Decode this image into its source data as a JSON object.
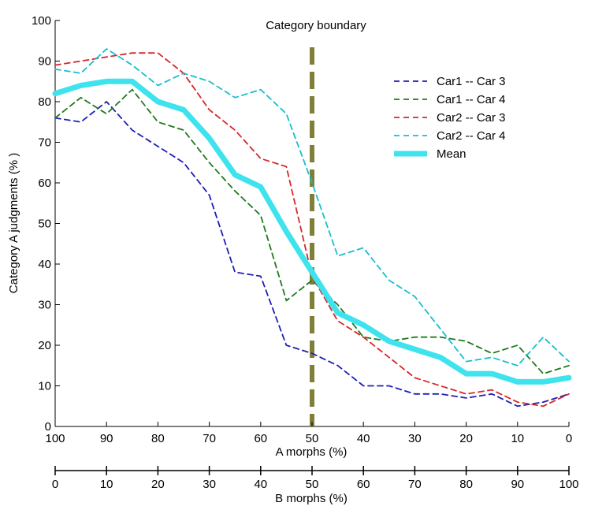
{
  "chart_data": {
    "type": "line",
    "ylabel": "Category A judgments (% )",
    "ylim": [
      0,
      100
    ],
    "yticks": [
      0,
      10,
      20,
      30,
      40,
      50,
      60,
      70,
      80,
      90,
      100
    ],
    "x": [
      100,
      95,
      90,
      85,
      80,
      75,
      70,
      65,
      60,
      55,
      50,
      45,
      40,
      35,
      30,
      25,
      20,
      15,
      10,
      5,
      0
    ],
    "x_axis_top": {
      "label": "A morphs (%)",
      "ticks": [
        100,
        90,
        80,
        70,
        60,
        50,
        40,
        30,
        20,
        10,
        0
      ]
    },
    "x_axis_bottom": {
      "label": "B morphs (%)",
      "ticks": [
        0,
        10,
        20,
        30,
        40,
        50,
        60,
        70,
        80,
        90,
        100
      ]
    },
    "boundary": {
      "label": "Category boundary",
      "x": 50,
      "color": "#7f7f3a"
    },
    "legend_position": "top-right",
    "grid": false,
    "series": [
      {
        "name": "Car1 -- Car 3",
        "color": "#1f1fb4",
        "style": "dashed",
        "values": [
          76,
          75,
          80,
          73,
          69,
          65,
          57,
          38,
          37,
          20,
          18,
          15,
          10,
          10,
          8,
          8,
          7,
          8,
          5,
          6,
          8
        ]
      },
      {
        "name": "Car1 -- Car 4",
        "color": "#1f7a1f",
        "style": "dashed",
        "values": [
          76,
          81,
          77,
          83,
          75,
          73,
          65,
          58,
          52,
          31,
          36,
          30,
          22,
          21,
          22,
          22,
          21,
          18,
          20,
          13,
          15
        ]
      },
      {
        "name": "Car2 -- Car 3",
        "color": "#d62728",
        "style": "dashed",
        "values": [
          89,
          90,
          91,
          92,
          92,
          87,
          78,
          73,
          66,
          64,
          37,
          26,
          22,
          17,
          12,
          10,
          8,
          9,
          6,
          5,
          8
        ]
      },
      {
        "name": "Car2 -- Car 4",
        "color": "#17becf",
        "style": "dashed",
        "values": [
          88,
          87,
          93,
          89,
          84,
          87,
          85,
          81,
          83,
          77,
          60,
          42,
          44,
          36,
          32,
          24,
          16,
          17,
          15,
          22,
          16
        ]
      },
      {
        "name": "Mean",
        "color": "#3ee3ee",
        "style": "solid",
        "values": [
          82,
          84,
          85,
          85,
          80,
          78,
          71,
          62,
          59,
          48,
          38,
          28,
          25,
          21,
          19,
          17,
          13,
          13,
          11,
          11,
          12
        ]
      }
    ]
  }
}
